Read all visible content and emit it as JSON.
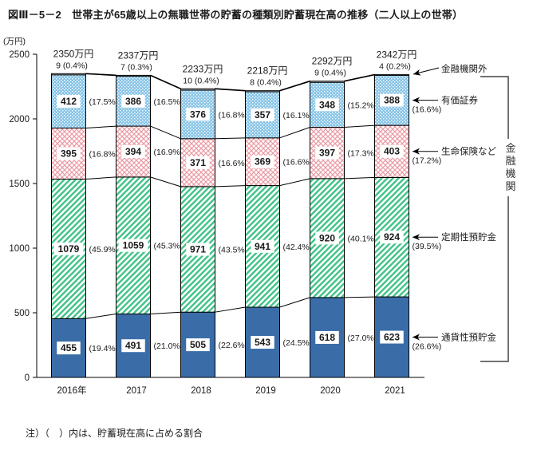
{
  "title": "図Ⅲ－5－2　世帯主が65歳以上の無職世帯の貯蓄の種類別貯蓄現在高の推移（二人以上の世帯）",
  "unit_label": "(万円)",
  "note": "注）（　）内は、貯蓄現在高に占める割合",
  "chart_data": {
    "type": "bar",
    "subtype": "stacked-bar-with-connectors",
    "categories": [
      "2016年",
      "2017",
      "2018",
      "2019",
      "2020",
      "2021"
    ],
    "totals": [
      "2350万円",
      "2337万円",
      "2233万円",
      "2218万円",
      "2292万円",
      "2342万円"
    ],
    "total_values": [
      2350,
      2337,
      2233,
      2218,
      2292,
      2342
    ],
    "outside_labels": [
      "9 (0.4%)",
      "7 (0.3%)",
      "10 (0.4%)",
      "8 (0.4%)",
      "9 (0.4%)",
      "4 (0.2%)"
    ],
    "outside_values": [
      9,
      7,
      10,
      8,
      9,
      4
    ],
    "top_series_name": "金融機関外",
    "bracket_label": "金融機関",
    "series": [
      {
        "name": "通貨性預貯金",
        "style": "solid-blue",
        "color": "#3a6da8",
        "values": [
          455,
          491,
          505,
          543,
          618,
          623
        ],
        "pct": [
          "(19.4%)",
          "(21.0%)",
          "(22.6%)",
          "(24.5%)",
          "(27.0%)",
          "(26.6%)"
        ]
      },
      {
        "name": "定期性預貯金",
        "style": "green-hatch",
        "color": "#3fc287",
        "values": [
          1079,
          1059,
          971,
          941,
          920,
          924
        ],
        "pct": [
          "(45.9%)",
          "(45.3%)",
          "(43.5%)",
          "(42.4%)",
          "(40.1%)",
          "(39.5%)"
        ]
      },
      {
        "name": "生命保険など",
        "style": "pink-crosshatch",
        "color": "#ea9aa4",
        "values": [
          395,
          394,
          371,
          369,
          397,
          403
        ],
        "pct": [
          "(16.8%)",
          "(16.9%)",
          "(16.6%)",
          "(16.6%)",
          "(17.3%)",
          "(17.2%)"
        ]
      },
      {
        "name": "有価証券",
        "style": "blue-dots",
        "color": "#85c3e6",
        "values": [
          412,
          386,
          376,
          357,
          348,
          388
        ],
        "pct": [
          "(17.5%)",
          "(16.5%)",
          "(16.8%)",
          "(16.1%)",
          "(15.2%)",
          "(16.6%)"
        ]
      }
    ],
    "ylabel_ticks": [
      0,
      500,
      1000,
      1500,
      2000,
      2500
    ],
    "ylim": [
      0,
      2500
    ],
    "grid": false,
    "legend_position": "right-annotations"
  }
}
